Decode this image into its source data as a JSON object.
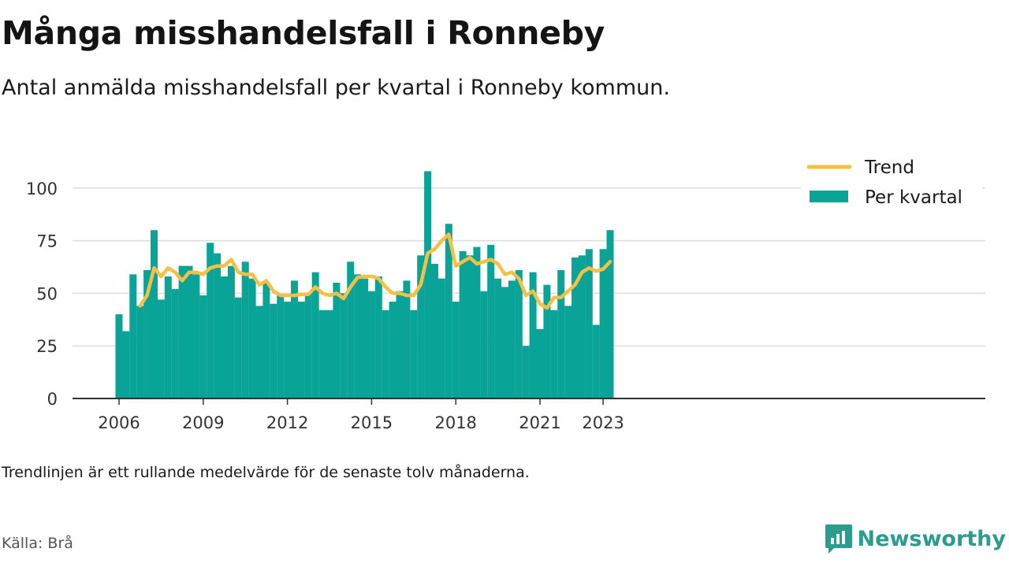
{
  "header": {
    "title": "Många misshandelsfall i Ronneby",
    "subtitle": "Antal anmälda misshandelsfall per kvartal i Ronneby kommun."
  },
  "footer": {
    "note": "Trendlinjen är ett rullande medelvärde för de senaste tolv månaderna.",
    "source": "Källa: Brå",
    "brand": "Newsworthy"
  },
  "colors": {
    "bar": "#0aa398",
    "trend": "#f5c044",
    "grid": "#dcdcdc",
    "axis": "#333333",
    "brand": "#2a9d8f"
  },
  "chart_data": {
    "type": "bar",
    "x_start": "2006 Q1",
    "x_tick_labels": [
      "2006",
      "2009",
      "2012",
      "2015",
      "2018",
      "2021",
      "2023"
    ],
    "x_tick_index": [
      0,
      12,
      24,
      36,
      48,
      60,
      69
    ],
    "y_ticks": [
      0,
      25,
      50,
      75,
      100
    ],
    "ylim": [
      0,
      110
    ],
    "grid": true,
    "legend_position": "top-right",
    "series": [
      {
        "name": "Per kvartal",
        "type": "bar",
        "values": [
          40,
          32,
          59,
          44,
          61,
          80,
          47,
          58,
          52,
          63,
          63,
          59,
          49,
          74,
          69,
          58,
          63,
          48,
          65,
          57,
          44,
          55,
          45,
          49,
          46,
          56,
          46,
          50,
          60,
          42,
          42,
          55,
          50,
          65,
          59,
          57,
          51,
          58,
          42,
          46,
          51,
          56,
          42,
          68,
          108,
          64,
          57,
          83,
          46,
          70,
          68,
          72,
          51,
          73,
          57,
          53,
          56,
          61,
          25,
          60,
          33,
          54,
          42,
          61,
          44,
          67,
          68,
          71,
          35,
          71,
          80
        ]
      },
      {
        "name": "Trend",
        "type": "line",
        "start_index": 3,
        "values": [
          44,
          49,
          62,
          58,
          62,
          60,
          56,
          60,
          60,
          59,
          62,
          63,
          63,
          66,
          60,
          59,
          59,
          54,
          56,
          51,
          49,
          49,
          49,
          49.5,
          49.5,
          53,
          50,
          49,
          50,
          47.5,
          53,
          57.5,
          58,
          58,
          57,
          53,
          50,
          50,
          49,
          49,
          54,
          69,
          71,
          75,
          78,
          63,
          65,
          67,
          64,
          65,
          66,
          64,
          59,
          60,
          57,
          49,
          51,
          45,
          43,
          48,
          48,
          51,
          54,
          60,
          62,
          60.5,
          61.5,
          65
        ]
      }
    ]
  }
}
